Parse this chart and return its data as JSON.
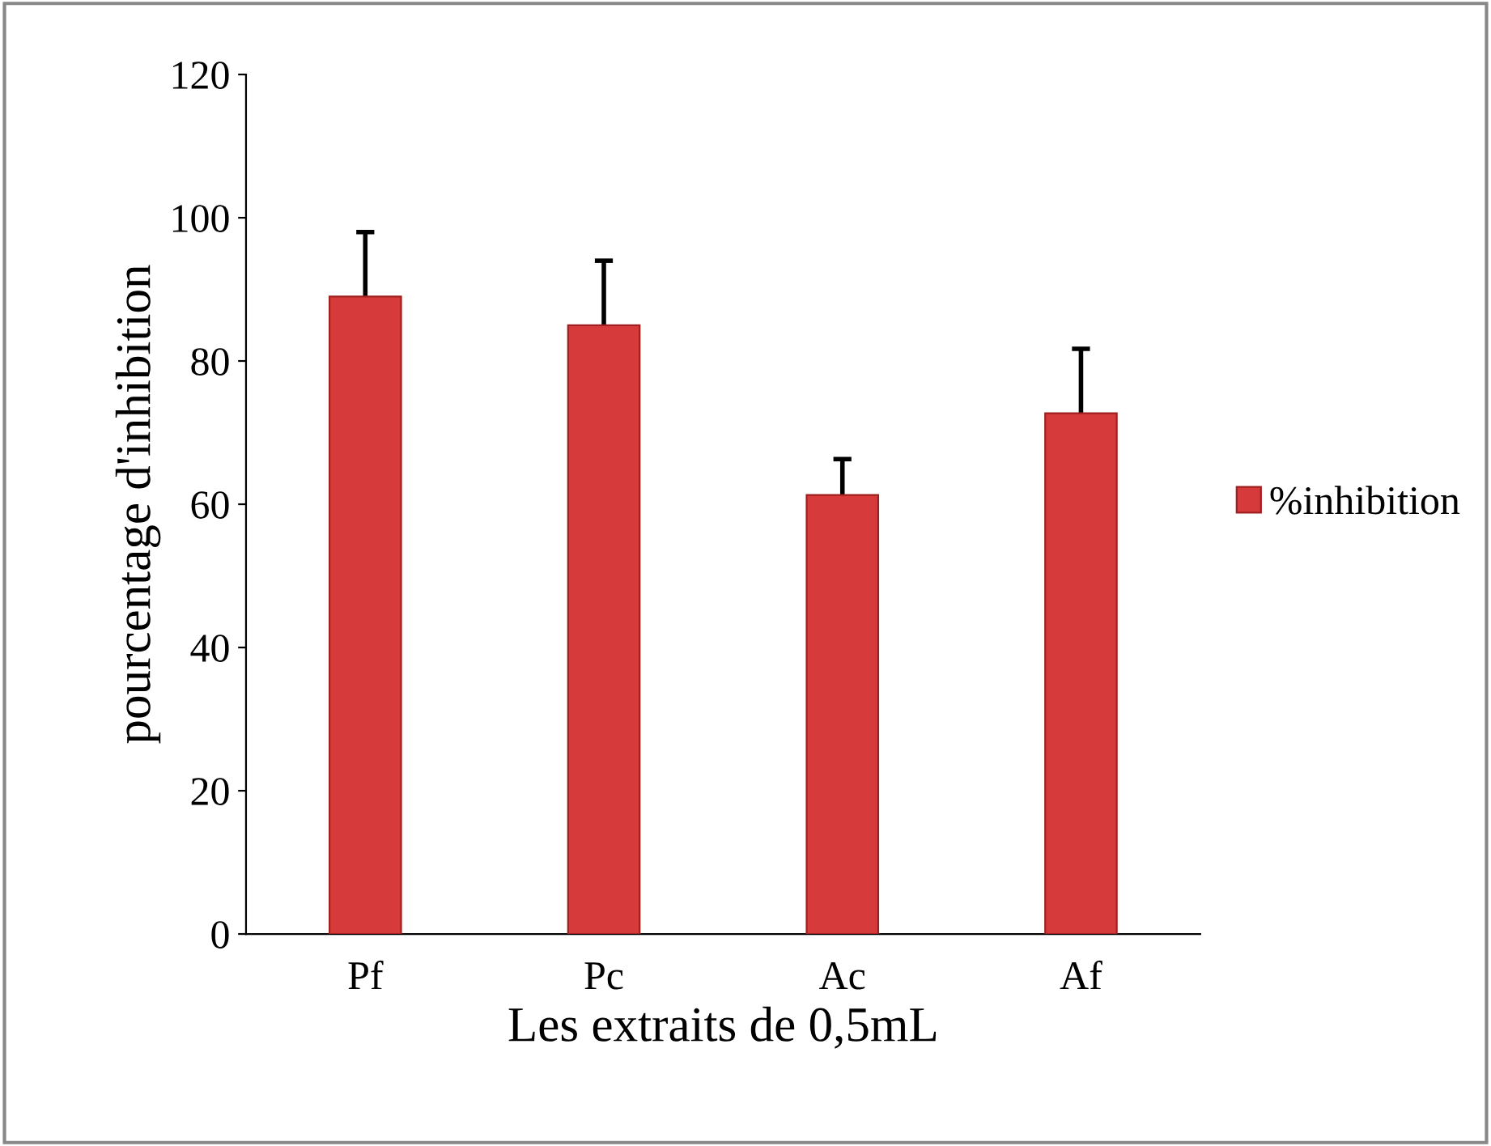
{
  "chart_data": {
    "type": "bar",
    "xlabel": "Les extraits de 0,5mL",
    "ylabel": "pourcentage d'inhibition",
    "categories": [
      "Pf",
      "Pc",
      "Ac",
      "Af"
    ],
    "series": [
      {
        "name": "%inhibition",
        "color": "#d63a3a",
        "values": [
          89,
          85,
          61.3,
          72.7
        ],
        "errors": [
          9,
          9,
          5,
          9
        ]
      }
    ],
    "ylim": [
      0,
      120
    ],
    "yticks": [
      0,
      20,
      40,
      60,
      80,
      100,
      120
    ],
    "grid": false,
    "legend": "right"
  }
}
